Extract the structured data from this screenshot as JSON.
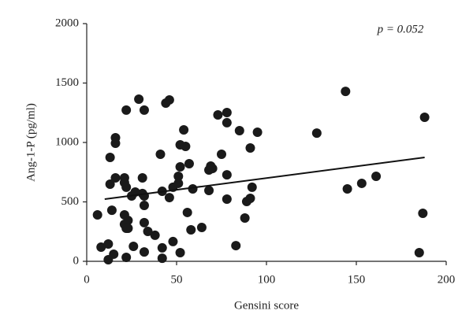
{
  "chart_data": {
    "type": "scatter",
    "x_label": "Gensini score",
    "y_label": "Ang-1-P (pg/ml)",
    "annotation": "p = 0.052",
    "color": "#1a1a1a",
    "xlim": [
      0,
      200
    ],
    "xticks": [
      0,
      50,
      100,
      150,
      200
    ],
    "ylim": [
      0,
      2000
    ],
    "yticks": [
      0,
      500,
      1000,
      1500,
      2000
    ],
    "x": [
      6,
      8,
      12,
      12,
      13,
      13,
      14,
      15,
      16,
      16,
      16,
      21,
      21,
      21,
      21,
      22,
      22,
      22,
      22,
      23,
      23,
      25,
      26,
      27,
      29,
      31,
      31,
      32,
      32,
      32,
      32,
      32,
      34,
      38,
      41,
      42,
      42,
      42,
      44,
      46,
      46,
      48,
      48,
      51,
      51,
      52,
      52,
      52,
      54,
      55,
      56,
      57,
      58,
      59,
      64,
      68,
      68,
      69,
      70,
      73,
      75,
      78,
      78,
      78,
      78,
      83,
      85,
      88,
      89,
      91,
      92,
      91,
      95,
      128,
      144,
      145,
      153,
      161,
      185,
      187,
      188
    ],
    "y": [
      391,
      119,
      146,
      13,
      649,
      874,
      430,
      60,
      1040,
      993,
      702,
      702,
      662,
      311,
      391,
      278,
      33,
      1272,
      623,
      344,
      278,
      550,
      126,
      583,
      1364,
      570,
      702,
      1272,
      470,
      325,
      550,
      79,
      252,
      219,
      901,
      113,
      26,
      589,
      1331,
      1358,
      536,
      166,
      623,
      656,
      715,
      795,
      980,
      73,
      1106,
      967,
      411,
      821,
      265,
      609,
      285,
      596,
      768,
      801,
      781,
      1232,
      901,
      1166,
      1252,
      728,
      523,
      132,
      1099,
      364,
      503,
      954,
      623,
      530,
      1086,
      1079,
      1430,
      609,
      656,
      715,
      73,
      404,
      1212
    ],
    "fit": {
      "x": [
        10,
        188
      ],
      "y": [
        523,
        874
      ]
    }
  }
}
